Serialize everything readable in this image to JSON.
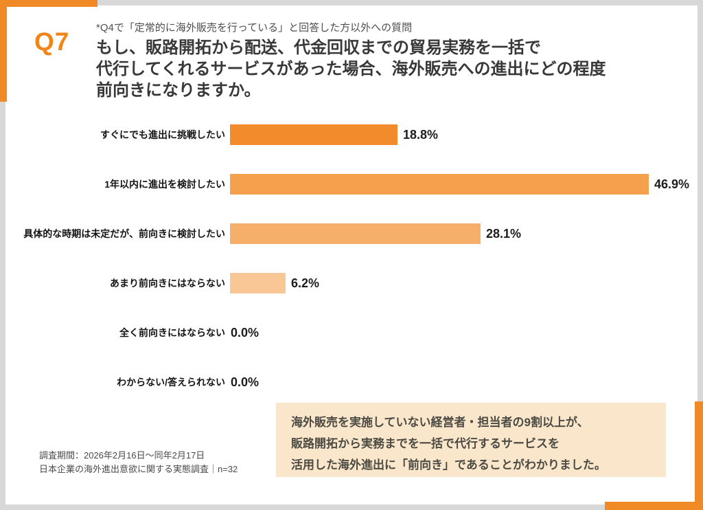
{
  "header": {
    "question_number": "Q7",
    "note": "*Q4で「定常的に海外販売を行っている」と回答した方以外への質問",
    "title_lines": [
      "もし、販路開拓から配送、代金回収までの貿易実務を一括で",
      "代行してくれるサービスがあった場合、海外販売への進出にどの程度",
      "前向きになりますか。"
    ]
  },
  "chart_data": {
    "type": "bar",
    "orientation": "horizontal",
    "categories": [
      "すぐにでも進出に挑戦したい",
      "1年以内に進出を検討したい",
      "具体的な時期は未定だが、前向きに検討したい",
      "あまり前向きにはならない",
      "全く前向きにはならない",
      "わからない/答えられない"
    ],
    "values": [
      18.8,
      46.9,
      28.1,
      6.2,
      0.0,
      0.0
    ],
    "value_labels": [
      "18.8%",
      "46.9%",
      "28.1%",
      "6.2%",
      "0.0%",
      "0.0%"
    ],
    "bar_colors": [
      "#F28B2B",
      "#F5A04C",
      "#F6AF6B",
      "#F8C795",
      null,
      null
    ],
    "unit": "%",
    "xlim": [
      0,
      50
    ],
    "grid": false,
    "legend": false,
    "title": "もし、販路開拓から配送、代金回収までの貿易実務を一括で代行してくれるサービスがあった場合、海外販売への進出にどの程度前向きになりますか。"
  },
  "summary_box": {
    "lines": [
      "海外販売を実施していない経営者・担当者の9割以上が、",
      "販路開拓から実務までを一括で代行するサービスを",
      "活用した海外進出に「前向き」であることがわかりました。"
    ],
    "background": "#FAE7CB"
  },
  "footnote": {
    "line1": "調査期間：2026年2月16日～同年2月17日",
    "line2": "日本企業の海外進出意欲に関する実態調査｜n=32"
  },
  "colors": {
    "accent_orange": "#F08A26",
    "frame_gray": "#D8D8D8",
    "card_white": "#FFFFFF",
    "title_text": "#383838",
    "note_text": "#4E4E4E",
    "summary_text": "#4B4A43"
  }
}
